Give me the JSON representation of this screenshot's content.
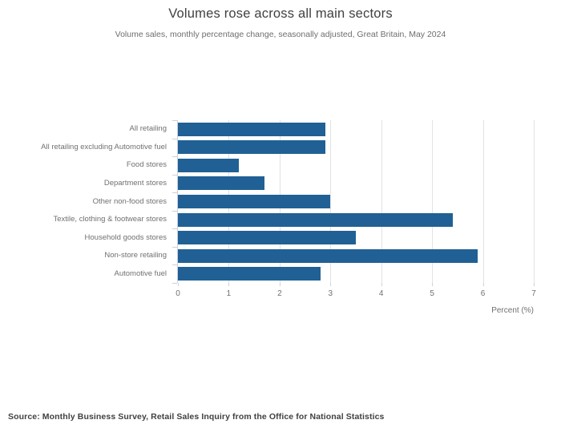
{
  "header": {
    "title": "Volumes rose across all main sectors",
    "subtitle": "Volume sales, monthly percentage change, seasonally adjusted, Great Britain, May 2024"
  },
  "footer": {
    "source": "Source: Monthly Business Survey, Retail Sales Inquiry from the Office for National Statistics"
  },
  "chart_data": {
    "type": "bar",
    "orientation": "horizontal",
    "title": "Volumes rose across all main sectors",
    "subtitle": "Volume sales, monthly percentage change, seasonally adjusted, Great Britain, May 2024",
    "categories": [
      "All retailing",
      "All retailing excluding Automotive fuel",
      "Food stores",
      "Department stores",
      "Other non-food stores",
      "Textile, clothing & footwear stores",
      "Household goods stores",
      "Non-store retailing",
      "Automotive fuel"
    ],
    "values": [
      2.9,
      2.9,
      1.2,
      1.7,
      3.0,
      5.4,
      3.5,
      5.9,
      2.8
    ],
    "xlabel": "Percent (%)",
    "ylabel": "",
    "xlim": [
      0,
      7
    ],
    "xticks": [
      0,
      1,
      2,
      3,
      4,
      5,
      6,
      7
    ],
    "grid": true,
    "legend": "none",
    "colors": {
      "bar": "#206095",
      "gridline": "#e2e2e2",
      "axis": "#c8d1e3",
      "title_text": "#414042",
      "label_text": "#707071"
    }
  }
}
